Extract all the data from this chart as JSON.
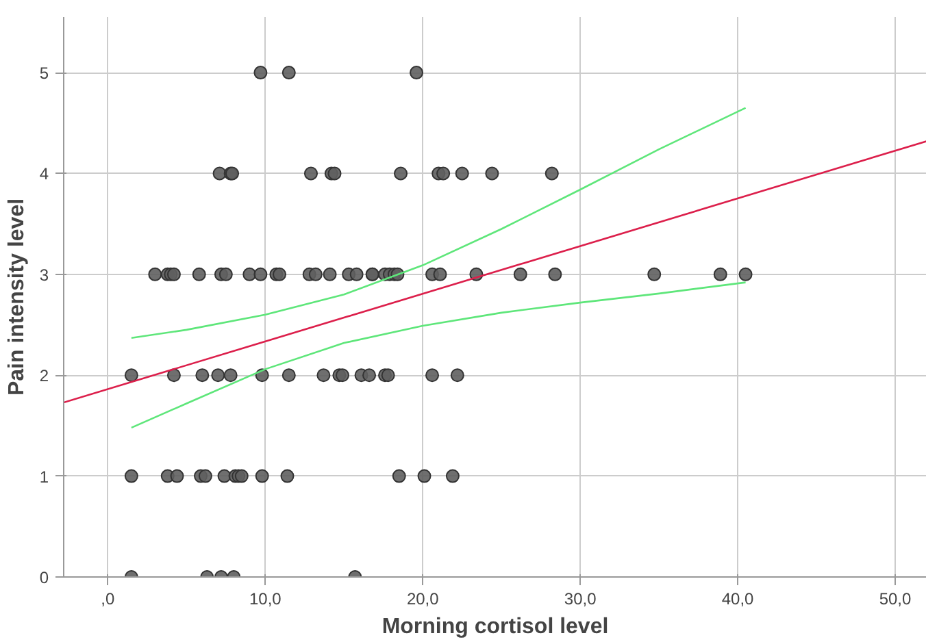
{
  "chart_data": {
    "type": "scatter",
    "xlabel": "Morning cortisol level",
    "ylabel": "Pain intensity level",
    "xlim": [
      -2.8,
      52
    ],
    "ylim": [
      0,
      5.55
    ],
    "xticks": [
      {
        "value": 0,
        "label": ",0"
      },
      {
        "value": 10,
        "label": "10,0"
      },
      {
        "value": 20,
        "label": "20,0"
      },
      {
        "value": 30,
        "label": "30,0"
      },
      {
        "value": 40,
        "label": "40,0"
      },
      {
        "value": 50,
        "label": "50,0"
      }
    ],
    "yticks": [
      0,
      1,
      2,
      3,
      4,
      5
    ],
    "grid": true,
    "series": [
      {
        "marker": "circle",
        "color": "#5f5f5f",
        "x": [
          9.7,
          11.5,
          19.6,
          7.1,
          7.8,
          7.9,
          12.9,
          14.2,
          14.4,
          18.6,
          21.0,
          21.3,
          22.5,
          24.4,
          28.2,
          3.0,
          3.8,
          4.0,
          4.2,
          5.8,
          7.2,
          7.5,
          9.0,
          9.7,
          10.7,
          10.9,
          12.8,
          13.2,
          14.1,
          15.3,
          15.8,
          16.8,
          16.8,
          17.6,
          17.9,
          18.2,
          18.4,
          20.6,
          21.1,
          23.4,
          26.2,
          28.4,
          34.7,
          38.9,
          40.5,
          1.5,
          4.2,
          6.0,
          7.0,
          7.8,
          9.8,
          11.5,
          13.7,
          14.7,
          14.9,
          16.1,
          16.6,
          17.6,
          17.8,
          20.6,
          22.2,
          1.5,
          3.8,
          4.4,
          5.9,
          6.2,
          7.4,
          8.1,
          8.3,
          8.5,
          9.8,
          11.4,
          18.5,
          20.1,
          21.9,
          1.5,
          6.3,
          7.2,
          8.0,
          15.7
        ],
        "values": [
          5,
          5,
          5,
          4,
          4,
          4,
          4,
          4,
          4,
          4,
          4,
          4,
          4,
          4,
          4,
          3,
          3,
          3,
          3,
          3,
          3,
          3,
          3,
          3,
          3,
          3,
          3,
          3,
          3,
          3,
          3,
          3,
          3,
          3,
          3,
          3,
          3,
          3,
          3,
          3,
          3,
          3,
          3,
          3,
          3,
          2,
          2,
          2,
          2,
          2,
          2,
          2,
          2,
          2,
          2,
          2,
          2,
          2,
          2,
          2,
          2,
          1,
          1,
          1,
          1,
          1,
          1,
          1,
          1,
          1,
          1,
          1,
          1,
          1,
          1,
          0,
          0,
          0,
          0,
          0
        ]
      },
      {
        "type": "line",
        "color": "#dc1f4b",
        "x": [
          -2.8,
          52
        ],
        "values": [
          1.73,
          4.32
        ]
      },
      {
        "type": "line",
        "color": "#5ee67a",
        "x": [
          1.5,
          5,
          10,
          15,
          20,
          25,
          30,
          35,
          40.5
        ],
        "values": [
          2.37,
          2.45,
          2.6,
          2.8,
          3.09,
          3.45,
          3.84,
          4.24,
          4.65
        ]
      },
      {
        "type": "line",
        "color": "#5ee67a",
        "x": [
          1.5,
          5,
          10,
          15,
          20,
          25,
          30,
          35,
          40.5
        ],
        "values": [
          1.48,
          1.72,
          2.06,
          2.32,
          2.49,
          2.62,
          2.72,
          2.81,
          2.92
        ]
      }
    ]
  }
}
